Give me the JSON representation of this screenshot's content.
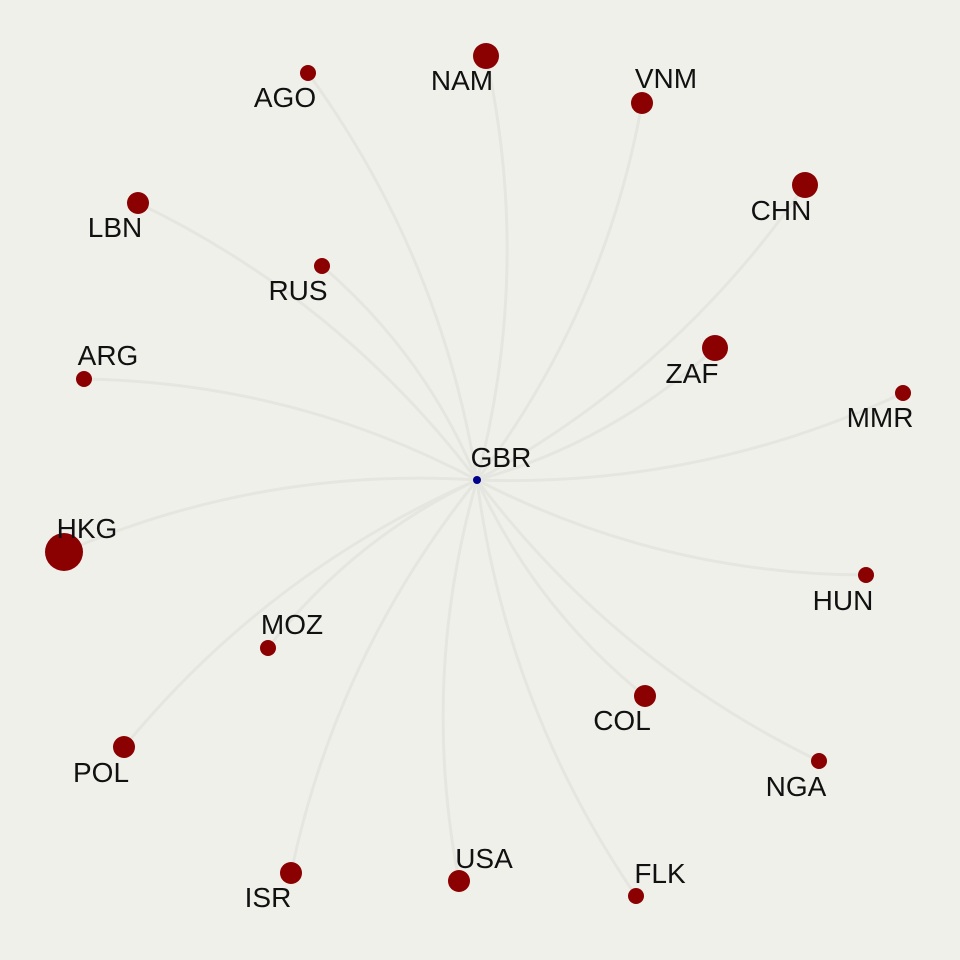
{
  "colors": {
    "background": "#f0f0eb",
    "edge": "#e6e6e1",
    "center_node": "#00008b",
    "node": "#8b0000",
    "label": "#111111"
  },
  "center": {
    "id": "GBR",
    "label": "GBR"
  },
  "nodes": [
    {
      "id": "NAM",
      "label": "NAM",
      "size": "large"
    },
    {
      "id": "AGO",
      "label": "AGO",
      "size": "small"
    },
    {
      "id": "VNM",
      "label": "VNM",
      "size": "medium"
    },
    {
      "id": "LBN",
      "label": "LBN",
      "size": "medium"
    },
    {
      "id": "CHN",
      "label": "CHN",
      "size": "large"
    },
    {
      "id": "RUS",
      "label": "RUS",
      "size": "small"
    },
    {
      "id": "ARG",
      "label": "ARG",
      "size": "small"
    },
    {
      "id": "ZAF",
      "label": "ZAF",
      "size": "large"
    },
    {
      "id": "MMR",
      "label": "MMR",
      "size": "small"
    },
    {
      "id": "HKG",
      "label": "HKG",
      "size": "xlarge"
    },
    {
      "id": "HUN",
      "label": "HUN",
      "size": "small"
    },
    {
      "id": "MOZ",
      "label": "MOZ",
      "size": "small"
    },
    {
      "id": "COL",
      "label": "COL",
      "size": "medium"
    },
    {
      "id": "POL",
      "label": "POL",
      "size": "medium"
    },
    {
      "id": "NGA",
      "label": "NGA",
      "size": "small"
    },
    {
      "id": "ISR",
      "label": "ISR",
      "size": "medium"
    },
    {
      "id": "USA",
      "label": "USA",
      "size": "medium"
    },
    {
      "id": "FLK",
      "label": "FLK",
      "size": "small"
    }
  ]
}
